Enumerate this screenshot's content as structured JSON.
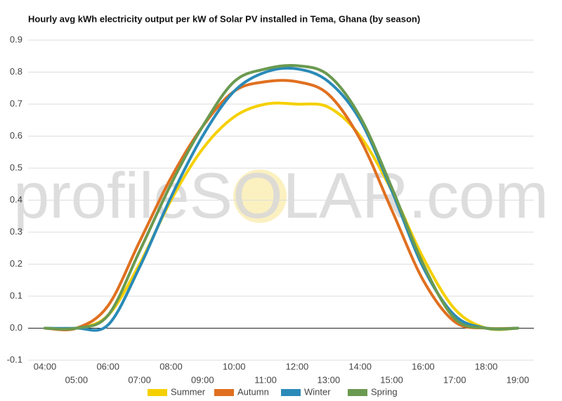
{
  "chart_data": {
    "type": "line",
    "title": "Hourly avg kWh electricity output per kW of Solar PV installed in Tema, Ghana (by season)",
    "watermark": "profileSOLAR.com",
    "categories": [
      "04:00",
      "05:00",
      "06:00",
      "07:00",
      "08:00",
      "09:00",
      "10:00",
      "11:00",
      "12:00",
      "13:00",
      "14:00",
      "15:00",
      "16:00",
      "17:00",
      "18:00",
      "19:00"
    ],
    "series": [
      {
        "name": "Summer",
        "color": "#f5d000",
        "values": [
          0,
          0,
          0.04,
          0.2,
          0.4,
          0.56,
          0.66,
          0.7,
          0.7,
          0.69,
          0.6,
          0.43,
          0.22,
          0.06,
          0,
          0
        ]
      },
      {
        "name": "Autumn",
        "color": "#e07020",
        "values": [
          0,
          0,
          0.07,
          0.27,
          0.47,
          0.63,
          0.74,
          0.77,
          0.77,
          0.73,
          0.59,
          0.37,
          0.15,
          0.02,
          0,
          0
        ]
      },
      {
        "name": "Winter",
        "color": "#2a8ab8",
        "values": [
          0,
          0,
          0.01,
          0.19,
          0.41,
          0.6,
          0.74,
          0.8,
          0.81,
          0.77,
          0.65,
          0.43,
          0.19,
          0.04,
          0,
          0
        ]
      },
      {
        "name": "Spring",
        "color": "#6a9a50",
        "values": [
          0,
          0,
          0.04,
          0.24,
          0.45,
          0.63,
          0.77,
          0.81,
          0.82,
          0.79,
          0.66,
          0.44,
          0.2,
          0.03,
          0,
          0
        ]
      }
    ],
    "ylim": [
      -0.1,
      0.9
    ],
    "yticks": [
      -0.1,
      {
        "value": 0,
        "label": "0.0"
      },
      0.1,
      0.2,
      0.3,
      0.4,
      0.5,
      0.6,
      0.7,
      0.8,
      0.9
    ],
    "grid": true
  }
}
